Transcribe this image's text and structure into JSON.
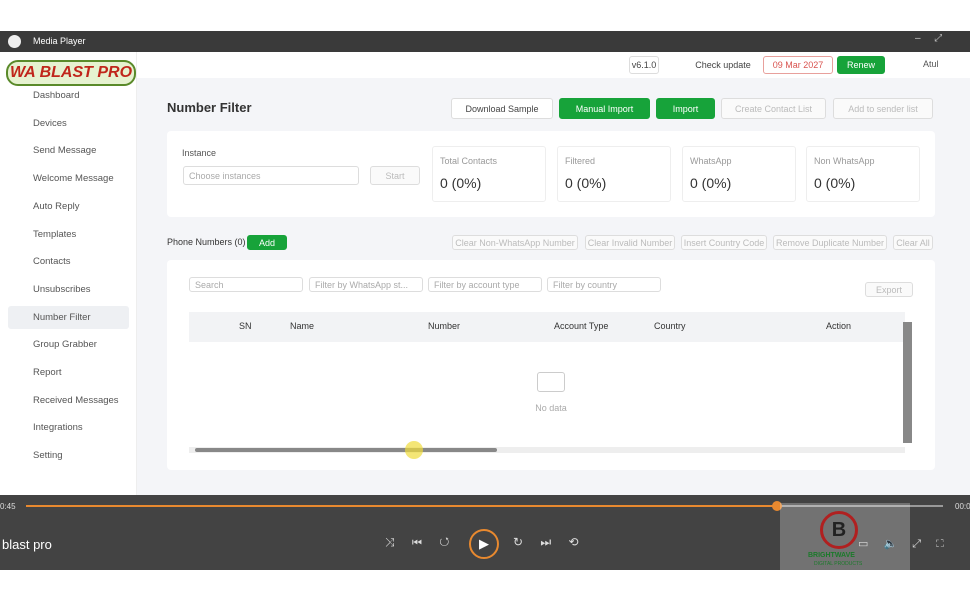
{
  "player": {
    "title": "Media Player",
    "elapsed": "0:45",
    "remaining": "00:0",
    "media_title": "blast pro",
    "watermark": "BRIGHTWAVE",
    "watermark_sub": "DIGITAL PRODUCTS"
  },
  "header": {
    "logo": "WA BLAST PRO",
    "version": "v6.1.0",
    "check_update": "Check update",
    "expiry": "09 Mar 2027",
    "renew": "Renew",
    "user": "Atul"
  },
  "sidebar": [
    "Dashboard",
    "Devices",
    "Send Message",
    "Welcome Message",
    "Auto Reply",
    "Templates",
    "Contacts",
    "Unsubscribes",
    "Number Filter",
    "Group Grabber",
    "Report",
    "Received Messages",
    "Integrations",
    "Setting"
  ],
  "page": {
    "title": "Number Filter",
    "buttons": [
      "Download Sample",
      "Manual Import",
      "Import",
      "Create Contact List",
      "Add to sender list"
    ],
    "instance_label": "Instance",
    "instance_placeholder": "Choose instances",
    "start": "Start",
    "stats": [
      {
        "label": "Total Contacts",
        "value": "0 (0%)"
      },
      {
        "label": "Filtered",
        "value": "0 (0%)"
      },
      {
        "label": "WhatsApp",
        "value": "0 (0%)"
      },
      {
        "label": "Non WhatsApp",
        "value": "0 (0%)"
      }
    ],
    "phone_numbers": "Phone Numbers (0)",
    "add": "Add",
    "actions": [
      "Clear Non-WhatsApp Number",
      "Clear Invalid Number",
      "Insert Country Code",
      "Remove Duplicate Number",
      "Clear All"
    ],
    "filters": [
      "Search",
      "Filter by WhatsApp st...",
      "Filter by account type",
      "Filter by country"
    ],
    "export": "Export",
    "columns": [
      "SN",
      "Name",
      "Number",
      "Account Type",
      "Country",
      "Action"
    ],
    "empty": "No data"
  }
}
